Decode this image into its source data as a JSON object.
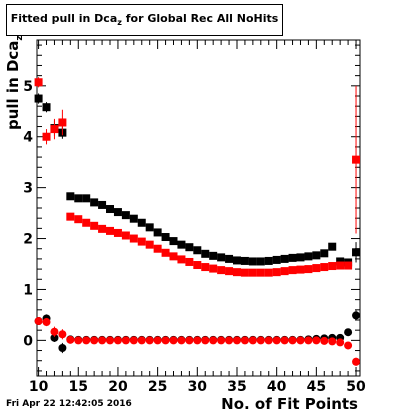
{
  "chart_data": {
    "type": "scatter",
    "title": "Fitted pull in Dca",
    "title_sub": "z",
    "title_rest": " for Global Rec All NoHits",
    "xlabel": "No. of Fit Points",
    "ylabel": "pull in Dca",
    "ylabel_sub": "z",
    "xlim": [
      9.8,
      50.5
    ],
    "ylim": [
      -0.7,
      5.9
    ],
    "xticks": [
      10,
      15,
      20,
      25,
      30,
      35,
      40,
      45,
      50
    ],
    "yticks": [
      0,
      1,
      2,
      3,
      4,
      5
    ],
    "grid": false,
    "legend": "none",
    "timestamp": "Fri Apr 22 12:42:05 2016",
    "colors": {
      "black": "#000000",
      "red": "#ff0000"
    },
    "series": [
      {
        "color": "#000000",
        "marker": "square",
        "x": [
          10,
          11,
          12,
          13,
          14,
          15,
          16,
          17,
          18,
          19,
          20,
          21,
          22,
          23,
          24,
          25,
          26,
          27,
          28,
          29,
          30,
          31,
          32,
          33,
          34,
          35,
          36,
          37,
          38,
          39,
          40,
          41,
          42,
          43,
          44,
          45,
          46,
          47,
          48,
          49,
          50
        ],
        "y": [
          4.75,
          4.58,
          4.17,
          4.08,
          2.83,
          2.79,
          2.79,
          2.71,
          2.66,
          2.58,
          2.52,
          2.46,
          2.39,
          2.31,
          2.22,
          2.12,
          2.03,
          1.95,
          1.88,
          1.83,
          1.77,
          1.7,
          1.66,
          1.63,
          1.6,
          1.57,
          1.56,
          1.55,
          1.55,
          1.56,
          1.58,
          1.6,
          1.62,
          1.63,
          1.65,
          1.67,
          1.71,
          1.84,
          1.55,
          1.53,
          1.73
        ],
        "err": [
          0.1,
          0.1,
          0.15,
          0.12,
          0.02,
          0.02,
          0.02,
          0.02,
          0.02,
          0.02,
          0.02,
          0.02,
          0.02,
          0.02,
          0.02,
          0.02,
          0.02,
          0.02,
          0.02,
          0.02,
          0.02,
          0.02,
          0.02,
          0.02,
          0.02,
          0.02,
          0.02,
          0.02,
          0.02,
          0.02,
          0.02,
          0.02,
          0.02,
          0.02,
          0.02,
          0.02,
          0.02,
          0.02,
          0.02,
          0.02,
          0.2
        ]
      },
      {
        "color": "#ff0000",
        "marker": "square",
        "x": [
          10,
          11,
          12,
          13,
          14,
          15,
          16,
          17,
          18,
          19,
          20,
          21,
          22,
          23,
          24,
          25,
          26,
          27,
          28,
          29,
          30,
          31,
          32,
          33,
          34,
          35,
          36,
          37,
          38,
          39,
          40,
          41,
          42,
          43,
          44,
          45,
          46,
          47,
          48,
          49,
          50
        ],
        "y": [
          5.07,
          4.0,
          4.15,
          4.28,
          2.43,
          2.38,
          2.31,
          2.25,
          2.19,
          2.15,
          2.11,
          2.06,
          2.0,
          1.94,
          1.88,
          1.8,
          1.72,
          1.65,
          1.59,
          1.54,
          1.48,
          1.44,
          1.41,
          1.38,
          1.36,
          1.34,
          1.33,
          1.33,
          1.33,
          1.33,
          1.34,
          1.36,
          1.38,
          1.39,
          1.4,
          1.42,
          1.44,
          1.46,
          1.47,
          1.47,
          3.55
        ],
        "err": [
          0.1,
          0.15,
          0.2,
          0.25,
          0.02,
          0.02,
          0.02,
          0.02,
          0.02,
          0.02,
          0.02,
          0.02,
          0.02,
          0.02,
          0.02,
          0.02,
          0.02,
          0.02,
          0.02,
          0.02,
          0.02,
          0.02,
          0.02,
          0.02,
          0.02,
          0.02,
          0.02,
          0.02,
          0.02,
          0.02,
          0.02,
          0.02,
          0.02,
          0.02,
          0.02,
          0.02,
          0.02,
          0.02,
          0.02,
          0.02,
          1.45
        ]
      },
      {
        "color": "#000000",
        "marker": "circle",
        "x": [
          10,
          11,
          12,
          13,
          14,
          15,
          16,
          17,
          18,
          19,
          20,
          21,
          22,
          23,
          24,
          25,
          26,
          27,
          28,
          29,
          30,
          31,
          32,
          33,
          34,
          35,
          36,
          37,
          38,
          39,
          40,
          41,
          42,
          43,
          44,
          45,
          46,
          47,
          48,
          49,
          50
        ],
        "y": [
          0.38,
          0.43,
          0.05,
          -0.15,
          0.02,
          0.01,
          0.01,
          0.01,
          0.01,
          0.01,
          0.01,
          0.01,
          0.01,
          0.01,
          0.01,
          0.01,
          0.01,
          0.01,
          0.01,
          0.01,
          0.01,
          0.01,
          0.01,
          0.01,
          0.01,
          0.01,
          0.01,
          0.01,
          0.01,
          0.01,
          0.01,
          0.01,
          0.01,
          0.01,
          0.02,
          0.03,
          0.04,
          0.05,
          0.05,
          0.16,
          0.49
        ],
        "err": [
          0.06,
          0.08,
          0.08,
          0.1,
          0.01,
          0.01,
          0.01,
          0.01,
          0.01,
          0.01,
          0.01,
          0.01,
          0.01,
          0.01,
          0.01,
          0.01,
          0.01,
          0.01,
          0.01,
          0.01,
          0.01,
          0.01,
          0.01,
          0.01,
          0.01,
          0.01,
          0.01,
          0.01,
          0.01,
          0.01,
          0.01,
          0.01,
          0.01,
          0.01,
          0.01,
          0.01,
          0.01,
          0.01,
          0.01,
          0.03,
          0.1
        ]
      },
      {
        "color": "#ff0000",
        "marker": "circle",
        "x": [
          10,
          11,
          12,
          13,
          14,
          15,
          16,
          17,
          18,
          19,
          20,
          21,
          22,
          23,
          24,
          25,
          26,
          27,
          28,
          29,
          30,
          31,
          32,
          33,
          34,
          35,
          36,
          37,
          38,
          39,
          40,
          41,
          42,
          43,
          44,
          45,
          46,
          47,
          48,
          49,
          50
        ],
        "y": [
          0.38,
          0.36,
          0.17,
          0.12,
          0.01,
          0.0,
          0.0,
          0.0,
          0.0,
          0.0,
          0.0,
          0.0,
          0.0,
          0.0,
          0.0,
          0.0,
          0.0,
          0.0,
          0.0,
          0.0,
          0.0,
          0.0,
          0.0,
          0.0,
          0.0,
          0.0,
          0.0,
          0.0,
          0.0,
          0.0,
          0.0,
          0.0,
          0.0,
          0.0,
          0.0,
          0.0,
          -0.01,
          -0.02,
          -0.04,
          -0.1,
          -0.42
        ],
        "err": [
          0.06,
          0.08,
          0.1,
          0.1,
          0.01,
          0.01,
          0.01,
          0.01,
          0.01,
          0.01,
          0.01,
          0.01,
          0.01,
          0.01,
          0.01,
          0.01,
          0.01,
          0.01,
          0.01,
          0.01,
          0.01,
          0.01,
          0.01,
          0.01,
          0.01,
          0.01,
          0.01,
          0.01,
          0.01,
          0.01,
          0.01,
          0.01,
          0.01,
          0.01,
          0.01,
          0.01,
          0.01,
          0.01,
          0.01,
          0.03,
          0.08
        ]
      }
    ]
  }
}
